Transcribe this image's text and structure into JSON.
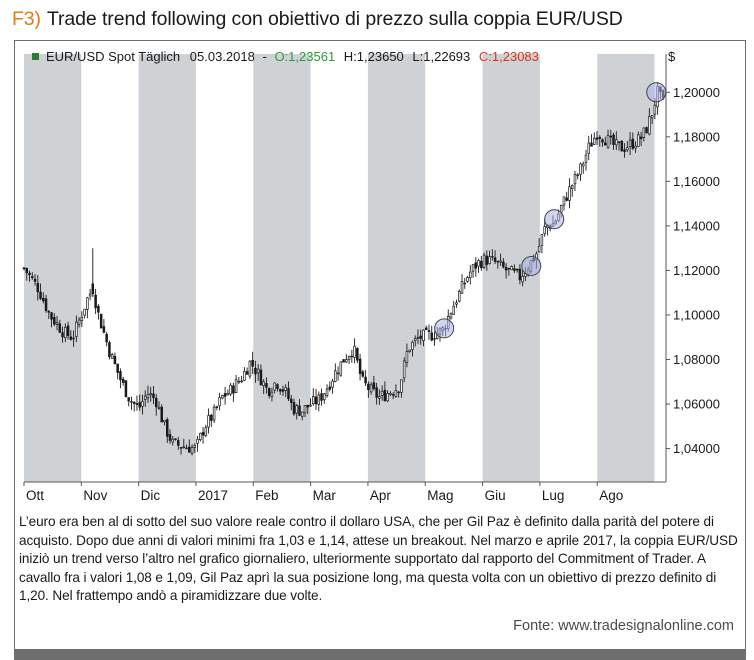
{
  "figure": {
    "prefix": "F3)",
    "title": "Trade trend following con obiettivo di prezzo sulla coppia EUR/USD",
    "caption": "L’euro era ben al di sotto del suo valore reale contro il dollaro USA, che per Gil Paz è definito dalla parità del potere di acquisto. Dopo due anni di valori minimi fra 1,03 e 1,14, attese un breakout. Nel marzo e aprile 2017, la coppia EUR/USD iniziò un trend verso l’altro nel grafico giornaliero, ulteriormente supportato dal rapporto del Commitment of Trader. A cavallo fra i valori 1,08 e 1,09, Gil Paz aprì la sua posizione long, ma questa volta con un obiettivo di prezzo definito di 1,20. Nel frattempo andò a piramidizzare due volte.",
    "source": "Fonte: www.tradesignalonline.com"
  },
  "chart_data": {
    "type": "candlestick",
    "instrument": "EUR/USD Spot Täglich",
    "header": {
      "instrument": "EUR/USD Spot Täglich",
      "date": "05.03.2018",
      "open_label": "O:1,23561",
      "high_label": "H:1,23650",
      "low_label": "L:1,22693",
      "close_label": "C:1,23083",
      "currency": "$"
    },
    "x_tick_labels": [
      "Ott",
      "Nov",
      "Dic",
      "2017",
      "Feb",
      "Mar",
      "Apr",
      "Mag",
      "Giu",
      "Lug",
      "Ago"
    ],
    "y_ticks": [
      1.04,
      1.06,
      1.08,
      1.1,
      1.12,
      1.14,
      1.16,
      1.18,
      1.2
    ],
    "y_tick_labels": [
      "1,04000",
      "1,06000",
      "1,08000",
      "1,10000",
      "1,12000",
      "1,14000",
      "1,16000",
      "1,18000",
      "1,20000"
    ],
    "ylim": [
      1.025,
      1.21
    ],
    "x_range_months": [
      0,
      11.2
    ],
    "shaded_months": [
      0,
      2,
      4,
      6,
      8,
      10
    ],
    "close_path": [
      [
        0.0,
        1.121
      ],
      [
        0.25,
        1.112
      ],
      [
        0.45,
        1.1
      ],
      [
        0.7,
        1.092
      ],
      [
        0.85,
        1.09
      ],
      [
        1.0,
        1.1
      ],
      [
        1.1,
        1.107
      ],
      [
        1.2,
        1.112
      ],
      [
        1.3,
        1.1
      ],
      [
        1.5,
        1.083
      ],
      [
        1.7,
        1.07
      ],
      [
        1.85,
        1.062
      ],
      [
        2.0,
        1.058
      ],
      [
        2.15,
        1.065
      ],
      [
        2.3,
        1.062
      ],
      [
        2.45,
        1.05
      ],
      [
        2.6,
        1.042
      ],
      [
        2.8,
        1.041
      ],
      [
        3.0,
        1.04
      ],
      [
        3.15,
        1.05
      ],
      [
        3.3,
        1.055
      ],
      [
        3.45,
        1.063
      ],
      [
        3.6,
        1.066
      ],
      [
        3.8,
        1.072
      ],
      [
        3.95,
        1.079
      ],
      [
        4.1,
        1.073
      ],
      [
        4.25,
        1.066
      ],
      [
        4.4,
        1.07
      ],
      [
        4.55,
        1.066
      ],
      [
        4.7,
        1.058
      ],
      [
        4.85,
        1.057
      ],
      [
        5.0,
        1.06
      ],
      [
        5.15,
        1.062
      ],
      [
        5.3,
        1.068
      ],
      [
        5.45,
        1.075
      ],
      [
        5.6,
        1.081
      ],
      [
        5.75,
        1.085
      ],
      [
        5.9,
        1.07
      ],
      [
        6.05,
        1.066
      ],
      [
        6.2,
        1.063
      ],
      [
        6.35,
        1.065
      ],
      [
        6.55,
        1.068
      ],
      [
        6.7,
        1.085
      ],
      [
        6.9,
        1.09
      ],
      [
        7.1,
        1.091
      ],
      [
        7.3,
        1.093
      ],
      [
        7.45,
        1.102
      ],
      [
        7.6,
        1.11
      ],
      [
        7.75,
        1.118
      ],
      [
        7.9,
        1.123
      ],
      [
        8.05,
        1.125
      ],
      [
        8.2,
        1.124
      ],
      [
        8.35,
        1.121
      ],
      [
        8.5,
        1.119
      ],
      [
        8.65,
        1.117
      ],
      [
        8.8,
        1.122
      ],
      [
        8.95,
        1.128
      ],
      [
        9.1,
        1.14
      ],
      [
        9.25,
        1.141
      ],
      [
        9.4,
        1.15
      ],
      [
        9.55,
        1.158
      ],
      [
        9.7,
        1.165
      ],
      [
        9.85,
        1.175
      ],
      [
        10.0,
        1.182
      ],
      [
        10.15,
        1.179
      ],
      [
        10.3,
        1.176
      ],
      [
        10.45,
        1.175
      ],
      [
        10.6,
        1.177
      ],
      [
        10.75,
        1.179
      ],
      [
        10.85,
        1.183
      ],
      [
        10.95,
        1.19
      ],
      [
        11.05,
        1.2
      ],
      [
        11.15,
        1.195
      ]
    ],
    "spike_candles": [
      {
        "month": 1.2,
        "open": 1.114,
        "high": 1.13,
        "low": 1.108,
        "close": 1.11
      }
    ],
    "markers": [
      {
        "label": "entry",
        "month": 7.33,
        "price": 1.094
      },
      {
        "label": "pyramid-1",
        "month": 8.85,
        "price": 1.122
      },
      {
        "label": "pyramid-2",
        "month": 9.25,
        "price": 1.143
      },
      {
        "label": "target",
        "month": 11.03,
        "price": 1.2
      }
    ],
    "colors": {
      "shade": "#cfd2d4",
      "candle_up": "#1a1a1a",
      "candle_down": "#1a1a1a",
      "marker_fill": "#aab3e6",
      "open_value": "#2c9c3a",
      "close_value": "#d9321e",
      "legend_square": "#2e7d32"
    }
  }
}
